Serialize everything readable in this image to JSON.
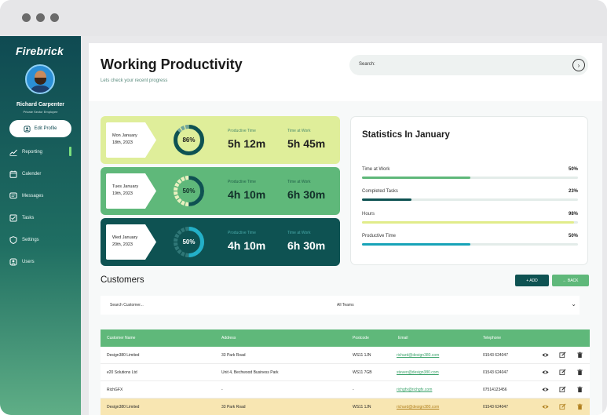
{
  "brand": "Firebrick",
  "user": {
    "name": "Richard Carpenter",
    "role": "Private Sector Employee"
  },
  "sidebar": {
    "edit_label": "Edit Profile",
    "items": [
      {
        "label": "Reporting",
        "icon": "chart-icon",
        "active": true
      },
      {
        "label": "Calender",
        "icon": "calendar-icon"
      },
      {
        "label": "Messages",
        "icon": "message-icon"
      },
      {
        "label": "Tasks",
        "icon": "tasks-icon"
      },
      {
        "label": "Settings",
        "icon": "shield-icon"
      },
      {
        "label": "Users",
        "icon": "users-icon"
      }
    ]
  },
  "header": {
    "title": "Working Productivity",
    "subtitle": "Lets check your recent progress",
    "search_label": "Search:"
  },
  "day_cards": [
    {
      "day": "Mon January",
      "date": "18th, 2023",
      "percent": "86%",
      "ratio": 0.86,
      "productive_label": "Productive Time",
      "productive": "5h 12m",
      "work_label": "Time at Work",
      "work": "5h 45m"
    },
    {
      "day": "Tues January",
      "date": "19th, 2023",
      "percent": "50%",
      "ratio": 0.5,
      "productive_label": "Productive Time",
      "productive": "4h 10m",
      "work_label": "Time at Work",
      "work": "6h 30m"
    },
    {
      "day": "Wed January",
      "date": "20th, 2023",
      "percent": "50%",
      "ratio": 0.5,
      "productive_label": "Productive Time",
      "productive": "4h 10m",
      "work_label": "Time at Work",
      "work": "6h 30m"
    }
  ],
  "stats": {
    "title": "Statistics In January",
    "items": [
      {
        "label": "Time at Work",
        "pct": "50%",
        "ratio": 0.5,
        "color": "#5fb87a"
      },
      {
        "label": "Completed Tasks",
        "pct": "23%",
        "ratio": 0.23,
        "color": "#0e5252"
      },
      {
        "label": "Hours",
        "pct": "98%",
        "ratio": 0.98,
        "color": "#e1ec8a"
      },
      {
        "label": "Productive Time",
        "pct": "50%",
        "ratio": 0.5,
        "color": "#17a3b8"
      }
    ]
  },
  "customers": {
    "title": "Customers",
    "add_label": "+ ADD",
    "back_label": "← BACK",
    "search_placeholder": "Search Customer...",
    "teams_value": "All Teams",
    "columns": [
      "Customer Name",
      "Address",
      "Postcode",
      "Email",
      "Telephone"
    ],
    "rows": [
      {
        "name": "Design380 Limited",
        "address": "33 Park Road",
        "postcode": "WS11 1JN",
        "email": "richard@design380.com",
        "phone": "01543 624047",
        "highlight": false
      },
      {
        "name": "e20 Solutions Ltd",
        "address": "Unit 4, Bechwood Business Park",
        "postcode": "WS11 7GB",
        "email": "steven@design380.com",
        "phone": "01543 624047",
        "highlight": false
      },
      {
        "name": "RichGFX",
        "address": "-",
        "postcode": "-",
        "email": "richgfx@richgfx.com",
        "phone": "07514123456",
        "highlight": false
      },
      {
        "name": "Design380 Limited",
        "address": "33 Park Road",
        "postcode": "WS11 1JN",
        "email": "richard@design380.com",
        "phone": "01543 624047",
        "highlight": true
      }
    ]
  },
  "colors": {
    "dark_teal": "#0e5252",
    "green": "#5fb87a",
    "lime": "#dfee9a",
    "highlight_row": "#f8e6b2"
  }
}
